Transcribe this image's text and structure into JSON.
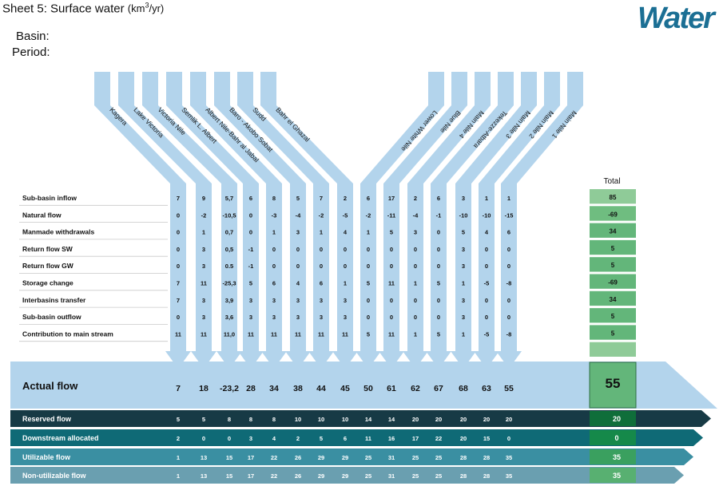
{
  "header": {
    "title": "Sheet 5: Surface water",
    "unit_pre": "(km",
    "unit_sup": "3",
    "unit_post": "/yr)",
    "basin_label": "Basin:",
    "period_label": "Period:",
    "logo_text": "Water"
  },
  "subbasins": [
    "Kagera",
    "Lake Victoria",
    "Victoria Nile",
    "Semlik L. Albert",
    "Albert Nile-Bahr al Jabal",
    "Baro - Akobo Sobat",
    "Sudd",
    "Bahr el Ghazal",
    "Lower White Nile",
    "Blue Nile",
    "Main Nile 4",
    "Tekezze-Atbara",
    "Main Nile 3",
    "Main Nile 2",
    "Main Nile 1"
  ],
  "total_label": "Total",
  "rows": [
    {
      "label": "Sub-basin inflow",
      "values": [
        "7",
        "9",
        "5,7",
        "6",
        "8",
        "5",
        "7",
        "2",
        "6",
        "17",
        "2",
        "6",
        "3",
        "1",
        "1"
      ],
      "total": "85"
    },
    {
      "label": "Natural flow",
      "values": [
        "0",
        "-2",
        "-10,5",
        "0",
        "-3",
        "-4",
        "-2",
        "-5",
        "-2",
        "-11",
        "-4",
        "-1",
        "-10",
        "-10",
        "-15"
      ],
      "total": "-69"
    },
    {
      "label": "Manmade withdrawals",
      "values": [
        "0",
        "1",
        "0,7",
        "0",
        "1",
        "3",
        "1",
        "4",
        "1",
        "5",
        "3",
        "0",
        "5",
        "4",
        "6"
      ],
      "total": "34"
    },
    {
      "label": "Return flow SW",
      "values": [
        "0",
        "3",
        "0,5",
        "-1",
        "0",
        "0",
        "0",
        "0",
        "0",
        "0",
        "0",
        "0",
        "3",
        "0",
        "0"
      ],
      "total": "5"
    },
    {
      "label": "Return flow GW",
      "values": [
        "0",
        "3",
        "0.5",
        "-1",
        "0",
        "0",
        "0",
        "0",
        "0",
        "0",
        "0",
        "0",
        "3",
        "0",
        "0"
      ],
      "total": "5"
    },
    {
      "label": "Storage change",
      "values": [
        "7",
        "11",
        "-25,3",
        "5",
        "6",
        "4",
        "6",
        "1",
        "5",
        "11",
        "1",
        "5",
        "1",
        "-5",
        "-8"
      ],
      "total": "-69"
    },
    {
      "label": "Interbasins transfer",
      "values": [
        "7",
        "3",
        "3,9",
        "3",
        "3",
        "3",
        "3",
        "3",
        "0",
        "0",
        "0",
        "0",
        "3",
        "0",
        "0"
      ],
      "total": "34"
    },
    {
      "label": "Sub-basin outflow",
      "values": [
        "0",
        "3",
        "3,6",
        "3",
        "3",
        "3",
        "3",
        "3",
        "0",
        "0",
        "0",
        "0",
        "3",
        "0",
        "0"
      ],
      "total": "5"
    },
    {
      "label": "Contribution to main stream",
      "values": [
        "11",
        "11",
        "11,0",
        "11",
        "11",
        "11",
        "11",
        "11",
        "5",
        "11",
        "1",
        "5",
        "1",
        "-5",
        "-8"
      ],
      "total": "5"
    }
  ],
  "actual_flow": {
    "label": "Actual flow",
    "values": [
      "7",
      "18",
      "-23,2",
      "28",
      "34",
      "38",
      "44",
      "45",
      "50",
      "61",
      "62",
      "67",
      "68",
      "63",
      "55"
    ],
    "total": "55"
  },
  "flow_bands": [
    {
      "label": "Reserved flow",
      "values": [
        "5",
        "5",
        "8",
        "8",
        "8",
        "10",
        "10",
        "10",
        "14",
        "14",
        "20",
        "20",
        "20",
        "20",
        "20"
      ],
      "total": "20",
      "color": "#173a45",
      "total_color": "#0f6e3a"
    },
    {
      "label": "Downstream allocated",
      "values": [
        "2",
        "0",
        "0",
        "3",
        "4",
        "2",
        "5",
        "6",
        "11",
        "16",
        "17",
        "22",
        "20",
        "15",
        "0"
      ],
      "total": "0",
      "color": "#0f6a76",
      "total_color": "#15894a"
    },
    {
      "label": "Utilizable flow",
      "values": [
        "1",
        "13",
        "15",
        "17",
        "22",
        "26",
        "29",
        "29",
        "25",
        "31",
        "25",
        "25",
        "28",
        "28",
        "35"
      ],
      "total": "35",
      "color": "#3a8fa2",
      "total_color": "#3aa05f"
    },
    {
      "label": "Non-utilizable flow",
      "values": [
        "1",
        "13",
        "15",
        "17",
        "22",
        "26",
        "29",
        "29",
        "25",
        "31",
        "25",
        "25",
        "28",
        "28",
        "35"
      ],
      "total": "35",
      "color": "#6a9fb0",
      "total_color": "#58b071"
    }
  ],
  "colors": {
    "stream": "#b3d4ec",
    "stream_edge": "#9fc6e3",
    "total_greens": [
      "#8fcb98",
      "#6fbd80",
      "#63b67a",
      "#63b67a",
      "#63b67a",
      "#63b67a",
      "#63b67a",
      "#63b67a",
      "#63b67a",
      "#8fcb98"
    ]
  }
}
